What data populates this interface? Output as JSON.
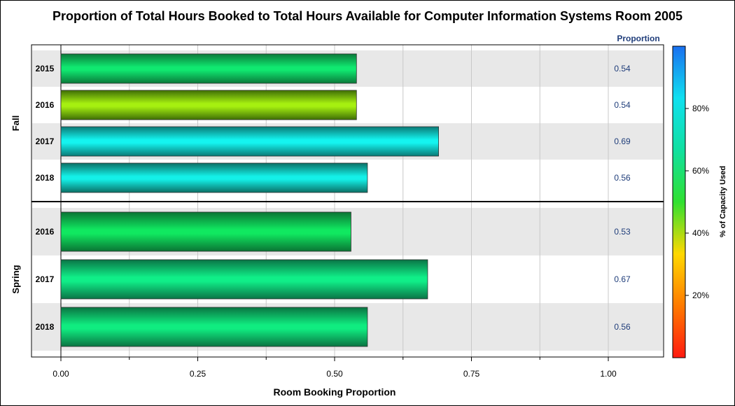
{
  "chart_data": {
    "type": "bar",
    "orientation": "horizontal",
    "title": "Proportion of Total Hours Booked to Total Hours Available for Computer Information Systems Room 2005",
    "xlabel": "Room Booking Proportion",
    "xlim": [
      0,
      1.1
    ],
    "x_ticks": [
      "0.00",
      "0.25",
      "0.50",
      "0.75",
      "1.00"
    ],
    "x_tick_values": [
      0,
      0.25,
      0.5,
      0.75,
      1.0
    ],
    "value_column_header": "Proportion",
    "groups": [
      {
        "name": "Fall",
        "bars": [
          {
            "category": "2015",
            "value": 0.54,
            "label": "0.54",
            "color": "#10e870",
            "shade": "#0a7a3a"
          },
          {
            "category": "2016",
            "value": 0.54,
            "label": "0.54",
            "color": "#a6f010",
            "shade": "#3f6e06"
          },
          {
            "category": "2017",
            "value": 0.69,
            "label": "0.69",
            "color": "#14f4f0",
            "shade": "#0a7a76"
          },
          {
            "category": "2018",
            "value": 0.56,
            "label": "0.56",
            "color": "#14f0e8",
            "shade": "#0a7066"
          }
        ]
      },
      {
        "name": "Spring",
        "bars": [
          {
            "category": "2016",
            "value": 0.53,
            "label": "0.53",
            "color": "#10e860",
            "shade": "#0a7434"
          },
          {
            "category": "2017",
            "value": 0.67,
            "label": "0.67",
            "color": "#10ee88",
            "shade": "#0a7446"
          },
          {
            "category": "2018",
            "value": 0.56,
            "label": "0.56",
            "color": "#10ec80",
            "shade": "#0a7442"
          }
        ]
      }
    ],
    "colorbar": {
      "label": "% of Capacity Used",
      "ticks": [
        "20%",
        "40%",
        "60%",
        "80%"
      ],
      "tick_values": [
        20,
        40,
        60,
        80
      ],
      "range": [
        0,
        100
      ],
      "stops": [
        "#ff1a10",
        "#ff7a00",
        "#ffd800",
        "#30e030",
        "#10e0a0",
        "#10e0f0",
        "#1a70f0"
      ]
    },
    "grid": true,
    "legend": "right"
  },
  "colors": {
    "band": "#e8e8e8",
    "grid": "#c8c8c8",
    "value_label": "#1f3d7a",
    "header": "#1f3d7a"
  }
}
